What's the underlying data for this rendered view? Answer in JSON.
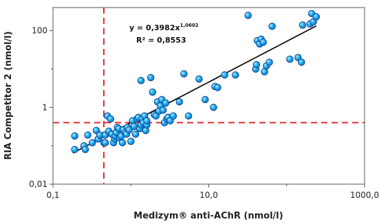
{
  "chart_data": {
    "type": "scatter",
    "title": "",
    "xlabel": "Medizym® anti-AChR (nmol/l)",
    "ylabel": "RIA Competitor 2 (nmol/l)",
    "x_scale": "log",
    "y_scale": "log",
    "xlim": [
      0.1,
      1000
    ],
    "ylim": [
      0.01,
      400
    ],
    "x_tick_labels": [
      "0,1",
      "10,0",
      "1000,0"
    ],
    "y_tick_labels": [
      "0,01",
      "1",
      "100"
    ],
    "x_ticks": [
      0.1,
      10,
      1000
    ],
    "y_ticks": [
      0.01,
      1,
      100
    ],
    "x_minor_ticks": [
      1,
      100
    ],
    "y_minor_ticks": [
      0.1,
      10
    ],
    "grid": false,
    "legend": "none",
    "equation": {
      "line1_prefix": "y = 0,3982x",
      "line1_exponent": "1,0602",
      "line2": "R² = 0,8553"
    },
    "trendline": {
      "coefficient": 0.3982,
      "exponent": 1.0602,
      "x_range": [
        0.18,
        240
      ]
    },
    "thresholds": {
      "x": 0.45,
      "y": 0.4
    },
    "colors": {
      "marker_fill": "#22b0f0",
      "marker_stroke": "#0a3f8c",
      "trendline": "#111111",
      "threshold": "#e0282d",
      "axis": "#555555"
    },
    "points": [
      [
        0.19,
        0.08
      ],
      [
        0.19,
        0.18
      ],
      [
        0.25,
        0.1
      ],
      [
        0.26,
        0.08
      ],
      [
        0.28,
        0.19
      ],
      [
        0.32,
        0.12
      ],
      [
        0.36,
        0.25
      ],
      [
        0.38,
        0.15
      ],
      [
        0.4,
        0.19
      ],
      [
        0.45,
        0.12
      ],
      [
        0.47,
        0.12
      ],
      [
        0.47,
        0.19
      ],
      [
        0.5,
        0.6
      ],
      [
        0.52,
        0.24
      ],
      [
        0.55,
        0.5
      ],
      [
        0.57,
        0.2
      ],
      [
        0.6,
        0.12
      ],
      [
        0.62,
        0.15
      ],
      [
        0.63,
        0.18
      ],
      [
        0.65,
        0.22
      ],
      [
        0.67,
        0.3
      ],
      [
        0.7,
        0.28
      ],
      [
        0.72,
        0.16
      ],
      [
        0.75,
        0.18
      ],
      [
        0.78,
        0.12
      ],
      [
        0.8,
        0.26
      ],
      [
        0.85,
        0.22
      ],
      [
        0.88,
        0.2
      ],
      [
        0.9,
        0.3
      ],
      [
        0.95,
        0.26
      ],
      [
        1.0,
        0.13
      ],
      [
        1.05,
        0.45
      ],
      [
        1.1,
        0.32
      ],
      [
        1.15,
        0.2
      ],
      [
        1.2,
        0.5
      ],
      [
        1.25,
        0.55
      ],
      [
        1.3,
        0.28
      ],
      [
        1.35,
        0.35
      ],
      [
        1.35,
        5.0
      ],
      [
        1.4,
        0.5
      ],
      [
        1.45,
        0.4
      ],
      [
        1.5,
        0.6
      ],
      [
        1.55,
        0.25
      ],
      [
        1.6,
        0.35
      ],
      [
        1.6,
        0.45
      ],
      [
        1.8,
        6.0
      ],
      [
        1.9,
        2.5
      ],
      [
        2.0,
        0.65
      ],
      [
        2.1,
        0.6
      ],
      [
        2.2,
        1.4
      ],
      [
        2.3,
        0.8
      ],
      [
        2.4,
        1.1
      ],
      [
        2.5,
        1.6
      ],
      [
        2.6,
        0.85
      ],
      [
        2.7,
        0.4
      ],
      [
        2.8,
        1.3
      ],
      [
        2.9,
        0.5
      ],
      [
        3.0,
        0.55
      ],
      [
        3.2,
        0.45
      ],
      [
        3.5,
        0.6
      ],
      [
        4.2,
        1.4
      ],
      [
        4.8,
        7.5
      ],
      [
        5.5,
        0.6
      ],
      [
        7.5,
        5.5
      ],
      [
        9.0,
        1.6
      ],
      [
        11.5,
        1.0
      ],
      [
        12.0,
        3.5
      ],
      [
        13.0,
        3.3
      ],
      [
        16.0,
        7.0
      ],
      [
        22.0,
        7.0
      ],
      [
        32.0,
        250
      ],
      [
        40.0,
        10.0
      ],
      [
        41.0,
        13.0
      ],
      [
        42.0,
        55.0
      ],
      [
        45.0,
        45.0
      ],
      [
        47.0,
        60.0
      ],
      [
        50.0,
        50.0
      ],
      [
        52.0,
        8.5
      ],
      [
        55.0,
        12.0
      ],
      [
        60.0,
        15.0
      ],
      [
        65.0,
        130
      ],
      [
        110.0,
        18.0
      ],
      [
        140.0,
        20.0
      ],
      [
        155.0,
        15.0
      ],
      [
        160.0,
        140
      ],
      [
        200.0,
        150
      ],
      [
        210.0,
        280
      ],
      [
        220.0,
        170
      ],
      [
        240.0,
        230
      ]
    ]
  }
}
